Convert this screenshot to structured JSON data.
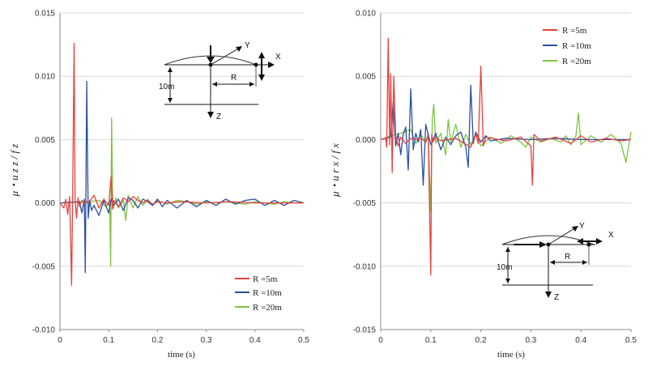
{
  "chart_data": [
    {
      "type": "line",
      "xlabel": "time (s)",
      "ylabel": "μ・u z z / f z",
      "xlim": [
        0,
        0.5
      ],
      "ylim": [
        -0.01,
        0.015
      ],
      "xticks": [
        "0",
        "0.1",
        "0.2",
        "0.3",
        "0.4",
        "0.5"
      ],
      "yticks": [
        "-0.010",
        "-0.005",
        "0.000",
        "0.005",
        "0.010",
        "0.015"
      ],
      "grid": "horizontal",
      "legend_position": "bottom-right",
      "series": [
        {
          "name": "R =5m",
          "color": "#e8413c",
          "x": [
            0,
            0.008,
            0.012,
            0.016,
            0.02,
            0.024,
            0.026,
            0.029,
            0.031,
            0.034,
            0.037,
            0.04,
            0.045,
            0.05,
            0.06,
            0.07,
            0.08,
            0.09,
            0.1,
            0.105,
            0.108,
            0.11,
            0.12,
            0.13,
            0.14,
            0.15,
            0.16,
            0.17,
            0.18,
            0.19,
            0.2,
            0.22,
            0.25,
            0.3,
            0.35,
            0.4,
            0.45,
            0.5
          ],
          "y": [
            0,
            -0.0004,
            0.0003,
            -0.0009,
            0.0005,
            -0.0065,
            0.0005,
            0.0126,
            0.0002,
            -0.0012,
            0.0004,
            -0.0003,
            0.0002,
            0,
            0.0001,
            0.0006,
            -0.0004,
            0.0003,
            -0.0002,
            0.0021,
            -0.0005,
            0.0002,
            -0.0003,
            0.0004,
            0.0001,
            0.0005,
            0.0002,
            0,
            0.0002,
            -0.0001,
            0.0001,
            0,
            0.0001,
            0,
            0.0001,
            0,
            0,
            0
          ]
        },
        {
          "name": "R =10m",
          "color": "#2b4fa0",
          "x": [
            0,
            0.04,
            0.045,
            0.05,
            0.052,
            0.055,
            0.058,
            0.061,
            0.065,
            0.07,
            0.08,
            0.09,
            0.1,
            0.105,
            0.11,
            0.12,
            0.13,
            0.14,
            0.15,
            0.16,
            0.17,
            0.18,
            0.19,
            0.2,
            0.21,
            0.22,
            0.24,
            0.26,
            0.28,
            0.3,
            0.32,
            0.34,
            0.36,
            0.38,
            0.4,
            0.42,
            0.44,
            0.46,
            0.48,
            0.5
          ],
          "y": [
            0,
            0.0001,
            -0.0008,
            0.0003,
            -0.0055,
            0.0096,
            -0.0012,
            0.0002,
            -0.0006,
            -0.0002,
            -0.001,
            0.0002,
            -0.0008,
            0.0003,
            -0.0002,
            0.0003,
            -0.0006,
            0.0004,
            0.0002,
            -0.0004,
            0.0003,
            0.0001,
            -0.0002,
            0.0003,
            -0.0003,
            0.0002,
            -0.0004,
            0.0002,
            -0.0003,
            0.0002,
            -0.0002,
            0.0003,
            -0.0001,
            0.0002,
            0.0003,
            -0.0002,
            0.0002,
            -0.0002,
            0.0002,
            0
          ]
        },
        {
          "name": "R =20m",
          "color": "#7fc241",
          "x": [
            0,
            0.06,
            0.08,
            0.095,
            0.102,
            0.104,
            0.106,
            0.108,
            0.11,
            0.115,
            0.12,
            0.13,
            0.135,
            0.14,
            0.15,
            0.16,
            0.17,
            0.18,
            0.19,
            0.2,
            0.22,
            0.24,
            0.26,
            0.28,
            0.3,
            0.32,
            0.34,
            0.36,
            0.38,
            0.4,
            0.42,
            0.44,
            0.46,
            0.48,
            0.5
          ],
          "y": [
            0,
            0.0001,
            0.0002,
            -0.0003,
            0.0002,
            -0.005,
            0.0067,
            0.0006,
            -0.0004,
            0.0004,
            -0.0004,
            0.0002,
            -0.0014,
            0.0006,
            -0.0004,
            0.0005,
            -0.0002,
            0.0003,
            -0.0002,
            0.0002,
            -0.0001,
            0.0002,
            0.0001,
            -0.0001,
            0.0001,
            0,
            0.0001,
            0,
            -0.0001,
            0.0001,
            0,
            -0.0001,
            0.0001,
            0,
            0
          ]
        }
      ]
    },
    {
      "type": "line",
      "xlabel": "time (s)",
      "ylabel": "μ・u r x / f x",
      "xlim": [
        0,
        0.5
      ],
      "ylim": [
        -0.015,
        0.01
      ],
      "xticks": [
        "0",
        "0.1",
        "0.2",
        "0.3",
        "0.4",
        "0.5"
      ],
      "yticks": [
        "-0.015",
        "-0.010",
        "-0.005",
        "0.000",
        "0.005",
        "0.010"
      ],
      "grid": "horizontal",
      "legend_position": "top-left",
      "series": [
        {
          "name": "R =5m",
          "color": "#e8413c",
          "x": [
            0,
            0.01,
            0.012,
            0.015,
            0.018,
            0.02,
            0.023,
            0.026,
            0.03,
            0.035,
            0.04,
            0.05,
            0.06,
            0.07,
            0.08,
            0.09,
            0.095,
            0.1,
            0.102,
            0.104,
            0.11,
            0.12,
            0.15,
            0.18,
            0.19,
            0.195,
            0.2,
            0.205,
            0.21,
            0.25,
            0.28,
            0.3,
            0.303,
            0.306,
            0.32,
            0.35,
            0.38,
            0.4,
            0.42,
            0.45,
            0.48,
            0.5
          ],
          "y": [
            0,
            0.0001,
            -0.0006,
            0.008,
            -0.0004,
            0.0052,
            -0.0026,
            0.005,
            0.0003,
            -0.0005,
            0.0002,
            -0.0003,
            0.0001,
            0,
            0.0001,
            -0.0002,
            0.0003,
            -0.0107,
            0.0004,
            -0.0002,
            0.0002,
            -0.0001,
            0.0001,
            -0.0006,
            0.0004,
            -0.0003,
            0.0058,
            -0.0005,
            0.0002,
            -0.0001,
            0.0002,
            -0.0005,
            -0.0036,
            0.0004,
            -0.0001,
            0.0002,
            -0.0003,
            0.0003,
            -0.0002,
            0.0001,
            -0.0001,
            0
          ]
        },
        {
          "name": "R =10m",
          "color": "#2b4fa0",
          "x": [
            0,
            0.02,
            0.025,
            0.03,
            0.035,
            0.04,
            0.045,
            0.05,
            0.055,
            0.06,
            0.065,
            0.07,
            0.075,
            0.08,
            0.085,
            0.09,
            0.1,
            0.11,
            0.12,
            0.13,
            0.14,
            0.15,
            0.16,
            0.17,
            0.175,
            0.18,
            0.185,
            0.19,
            0.2,
            0.21,
            0.22,
            0.25,
            0.3,
            0.35,
            0.4,
            0.45,
            0.5
          ],
          "y": [
            0,
            0.0002,
            0.003,
            -0.0005,
            0.0005,
            -0.0012,
            0.0004,
            0.001,
            -0.0024,
            0.004,
            -0.0008,
            0.0005,
            -0.0002,
            0.0008,
            -0.0036,
            0.0012,
            -0.0004,
            0.0005,
            -0.0008,
            0.0002,
            -0.0004,
            0.0003,
            0.0006,
            -0.0006,
            -0.0022,
            0.0043,
            -0.0003,
            0.0006,
            -0.0002,
            0.0003,
            -0.0001,
            0.0001,
            0,
            0.0001,
            0,
            0,
            0
          ]
        },
        {
          "name": "R =20m",
          "color": "#7fc241",
          "x": [
            0,
            0.02,
            0.04,
            0.06,
            0.07,
            0.08,
            0.09,
            0.095,
            0.1,
            0.103,
            0.106,
            0.11,
            0.12,
            0.13,
            0.135,
            0.14,
            0.15,
            0.16,
            0.17,
            0.18,
            0.19,
            0.2,
            0.22,
            0.24,
            0.26,
            0.28,
            0.29,
            0.3,
            0.32,
            0.34,
            0.36,
            0.37,
            0.38,
            0.39,
            0.395,
            0.4,
            0.42,
            0.44,
            0.46,
            0.48,
            0.49,
            0.5
          ],
          "y": [
            0,
            0.0003,
            0.0005,
            0.0008,
            -0.0003,
            0.0004,
            -0.0002,
            0.0005,
            -0.0057,
            0.0016,
            0.0028,
            -0.0003,
            0.0005,
            -0.0012,
            0.0016,
            -0.0002,
            0.0012,
            -0.0006,
            0.0004,
            -0.0004,
            0.0005,
            -0.0005,
            0.0002,
            -0.0003,
            0.0003,
            -0.0002,
            -0.0006,
            0.0002,
            -0.0002,
            0.0001,
            -0.0002,
            0.0003,
            -0.0004,
            0.0003,
            0.0021,
            -0.0004,
            0.0003,
            -0.0002,
            0.0004,
            -0.0003,
            -0.0018,
            0.0006
          ]
        }
      ]
    }
  ],
  "diagrams": [
    {
      "x_label": "X",
      "y_label": "Y",
      "z_label": "Z",
      "r_label": "R",
      "depth_label": "10m",
      "load": "vertical"
    },
    {
      "x_label": "X",
      "y_label": "Y",
      "z_label": "Z",
      "r_label": "R",
      "depth_label": "10m",
      "load": "horizontal"
    }
  ]
}
